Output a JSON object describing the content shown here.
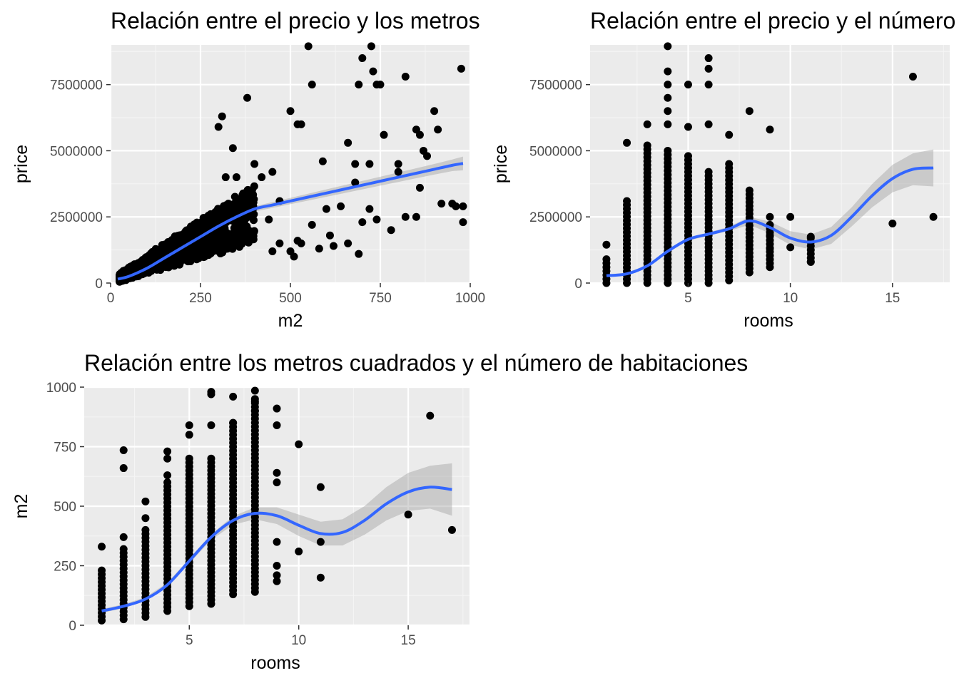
{
  "chart_data": [
    {
      "type": "scatter",
      "title": "Relación entre el precio y los metros cuadrados",
      "xlabel": "m2",
      "ylabel": "price",
      "xlim": [
        0,
        1000
      ],
      "ylim": [
        0,
        9000000
      ],
      "x_ticks": [
        "0",
        "250",
        "500",
        "750",
        "1000"
      ],
      "y_ticks": [
        "0",
        "2500000",
        "5000000",
        "7500000"
      ],
      "grid": true,
      "smooth_color": "#3366FF",
      "point_color": "#000000",
      "points": [
        [
          550,
          8950000
        ],
        [
          725,
          8950000
        ],
        [
          700,
          8500000
        ],
        [
          730,
          8000000
        ],
        [
          975,
          8100000
        ],
        [
          560,
          7500000
        ],
        [
          690,
          7500000
        ],
        [
          740,
          7500000
        ],
        [
          750,
          7500000
        ],
        [
          820,
          7800000
        ],
        [
          380,
          7000000
        ],
        [
          900,
          6500000
        ],
        [
          310,
          6300000
        ],
        [
          500,
          6500000
        ],
        [
          300,
          5900000
        ],
        [
          520,
          6000000
        ],
        [
          530,
          6000000
        ],
        [
          910,
          5800000
        ],
        [
          850,
          5800000
        ],
        [
          860,
          5600000
        ],
        [
          760,
          5600000
        ],
        [
          870,
          5000000
        ],
        [
          660,
          5300000
        ],
        [
          340,
          5100000
        ],
        [
          680,
          4500000
        ],
        [
          720,
          4500000
        ],
        [
          800,
          4500000
        ],
        [
          880,
          4800000
        ],
        [
          590,
          4600000
        ],
        [
          400,
          4500000
        ],
        [
          450,
          4200000
        ],
        [
          320,
          4000000
        ],
        [
          350,
          4000000
        ],
        [
          420,
          4000000
        ],
        [
          680,
          3800000
        ],
        [
          860,
          3600000
        ],
        [
          960,
          2900000
        ],
        [
          980,
          2900000
        ],
        [
          920,
          3000000
        ],
        [
          600,
          2800000
        ],
        [
          820,
          2500000
        ],
        [
          850,
          2500000
        ],
        [
          740,
          2400000
        ],
        [
          700,
          2300000
        ],
        [
          720,
          2800000
        ],
        [
          640,
          2900000
        ],
        [
          780,
          2000000
        ],
        [
          610,
          1800000
        ],
        [
          560,
          2200000
        ],
        [
          470,
          3100000
        ],
        [
          440,
          2400000
        ],
        [
          520,
          1600000
        ],
        [
          390,
          1800000
        ],
        [
          470,
          1500000
        ],
        [
          690,
          1100000
        ],
        [
          660,
          1500000
        ],
        [
          620,
          1400000
        ],
        [
          580,
          1300000
        ],
        [
          500,
          1200000
        ],
        [
          510,
          1000000
        ],
        [
          530,
          1500000
        ],
        [
          450,
          1200000
        ],
        [
          980,
          2300000
        ],
        [
          950,
          3000000
        ],
        [
          800,
          4200000
        ]
      ],
      "cloud": {
        "m2": [
          25,
          400
        ],
        "price": [
          0,
          5200000
        ]
      },
      "smooth": {
        "x": [
          20,
          50,
          100,
          150,
          200,
          250,
          300,
          350,
          400,
          450,
          500,
          550,
          600,
          650,
          700,
          750,
          800,
          850,
          900,
          950,
          980
        ],
        "y": [
          150000,
          250000,
          550000,
          950000,
          1350000,
          1750000,
          2150000,
          2500000,
          2800000,
          2950000,
          3100000,
          3250000,
          3400000,
          3550000,
          3700000,
          3850000,
          4000000,
          4150000,
          4300000,
          4450000,
          4520000
        ],
        "band": [
          60000,
          70000,
          60000,
          60000,
          60000,
          60000,
          70000,
          80000,
          100000,
          110000,
          120000,
          130000,
          140000,
          150000,
          160000,
          170000,
          180000,
          190000,
          200000,
          220000,
          260000
        ]
      }
    },
    {
      "type": "scatter",
      "title": "Relación entre el precio y el número de habitaciones",
      "xlabel": "rooms",
      "ylabel": "price",
      "xlim": [
        0.2,
        17.8
      ],
      "ylim": [
        0,
        9000000
      ],
      "x_ticks": [
        "5",
        "10",
        "15"
      ],
      "y_ticks": [
        "0",
        "2500000",
        "5000000",
        "7500000"
      ],
      "grid": true,
      "smooth_color": "#3366FF",
      "point_color": "#000000",
      "columns": [
        {
          "x": 1,
          "ymin": 0,
          "ymax": 900000
        },
        {
          "x": 2,
          "ymin": 0,
          "ymax": 3100000
        },
        {
          "x": 3,
          "ymin": 0,
          "ymax": 5200000
        },
        {
          "x": 4,
          "ymin": 0,
          "ymax": 5000000
        },
        {
          "x": 5,
          "ymin": 0,
          "ymax": 4800000
        },
        {
          "x": 6,
          "ymin": 0,
          "ymax": 4200000
        },
        {
          "x": 7,
          "ymin": 100000,
          "ymax": 4500000
        },
        {
          "x": 8,
          "ymin": 400000,
          "ymax": 3500000
        },
        {
          "x": 9,
          "ymin": 600000,
          "ymax": 2200000
        },
        {
          "x": 11,
          "ymin": 800000,
          "ymax": 1700000
        }
      ],
      "points": [
        [
          1,
          1450000
        ],
        [
          2,
          5300000
        ],
        [
          3,
          6000000
        ],
        [
          4,
          8950000
        ],
        [
          4,
          8000000
        ],
        [
          4,
          7500000
        ],
        [
          4,
          7000000
        ],
        [
          4,
          6500000
        ],
        [
          4,
          6000000
        ],
        [
          5,
          7500000
        ],
        [
          5,
          5900000
        ],
        [
          6,
          8500000
        ],
        [
          6,
          8100000
        ],
        [
          6,
          7500000
        ],
        [
          6,
          6000000
        ],
        [
          7,
          5600000
        ],
        [
          8,
          6500000
        ],
        [
          9,
          5800000
        ],
        [
          9,
          2500000
        ],
        [
          9,
          1800000
        ],
        [
          9,
          1300000
        ],
        [
          10,
          2500000
        ],
        [
          10,
          1350000
        ],
        [
          11,
          1750000
        ],
        [
          11,
          800000
        ],
        [
          15,
          2250000
        ],
        [
          16,
          7800000
        ],
        [
          17,
          2500000
        ]
      ],
      "smooth": {
        "x": [
          1,
          2,
          3,
          4,
          5,
          6,
          7,
          8,
          9,
          10,
          11,
          12,
          13,
          14,
          15,
          16,
          17
        ],
        "y": [
          280000,
          350000,
          650000,
          1200000,
          1650000,
          1850000,
          2050000,
          2350000,
          2100000,
          1700000,
          1550000,
          1800000,
          2500000,
          3300000,
          3950000,
          4300000,
          4350000
        ],
        "band": [
          40000,
          40000,
          40000,
          40000,
          50000,
          60000,
          80000,
          150000,
          220000,
          260000,
          280000,
          320000,
          360000,
          440000,
          520000,
          600000,
          700000
        ]
      }
    },
    {
      "type": "scatter",
      "title": "Relación entre los metros cuadrados y el número de habitaciones",
      "xlabel": "rooms",
      "ylabel": "m2",
      "xlim": [
        0.2,
        17.8
      ],
      "ylim": [
        0,
        1000
      ],
      "x_ticks": [
        "5",
        "10",
        "15"
      ],
      "y_ticks": [
        "0",
        "250",
        "500",
        "750",
        "1000"
      ],
      "grid": true,
      "smooth_color": "#3366FF",
      "point_color": "#000000",
      "columns": [
        {
          "x": 1,
          "ymin": 20,
          "ymax": 230
        },
        {
          "x": 2,
          "ymin": 25,
          "ymax": 320
        },
        {
          "x": 3,
          "ymin": 35,
          "ymax": 400
        },
        {
          "x": 4,
          "ymin": 60,
          "ymax": 600
        },
        {
          "x": 5,
          "ymin": 80,
          "ymax": 700
        },
        {
          "x": 6,
          "ymin": 90,
          "ymax": 700
        },
        {
          "x": 7,
          "ymin": 130,
          "ymax": 850
        },
        {
          "x": 8,
          "ymin": 140,
          "ymax": 950
        }
      ],
      "points": [
        [
          1,
          330
        ],
        [
          2,
          370
        ],
        [
          2,
          660
        ],
        [
          2,
          735
        ],
        [
          3,
          520
        ],
        [
          3,
          450
        ],
        [
          4,
          730
        ],
        [
          4,
          700
        ],
        [
          4,
          630
        ],
        [
          5,
          840
        ],
        [
          5,
          800
        ],
        [
          6,
          980
        ],
        [
          6,
          970
        ],
        [
          6,
          840
        ],
        [
          7,
          960
        ],
        [
          7,
          850
        ],
        [
          8,
          985
        ],
        [
          8,
          940
        ],
        [
          8,
          900
        ],
        [
          9,
          910
        ],
        [
          9,
          840
        ],
        [
          9,
          640
        ],
        [
          9,
          600
        ],
        [
          9,
          350
        ],
        [
          9,
          250
        ],
        [
          9,
          210
        ],
        [
          9,
          185
        ],
        [
          10,
          760
        ],
        [
          10,
          310
        ],
        [
          11,
          580
        ],
        [
          11,
          350
        ],
        [
          11,
          200
        ],
        [
          15,
          465
        ],
        [
          16,
          880
        ],
        [
          17,
          400
        ]
      ],
      "smooth": {
        "x": [
          1,
          2,
          3,
          4,
          5,
          6,
          7,
          8,
          9,
          10,
          11,
          12,
          13,
          14,
          15,
          16,
          17
        ],
        "y": [
          60,
          80,
          110,
          170,
          270,
          370,
          440,
          470,
          460,
          420,
          385,
          390,
          440,
          510,
          560,
          580,
          570
        ],
        "band": [
          8,
          8,
          8,
          8,
          10,
          12,
          18,
          25,
          35,
          45,
          50,
          55,
          60,
          70,
          80,
          90,
          110
        ]
      }
    }
  ]
}
